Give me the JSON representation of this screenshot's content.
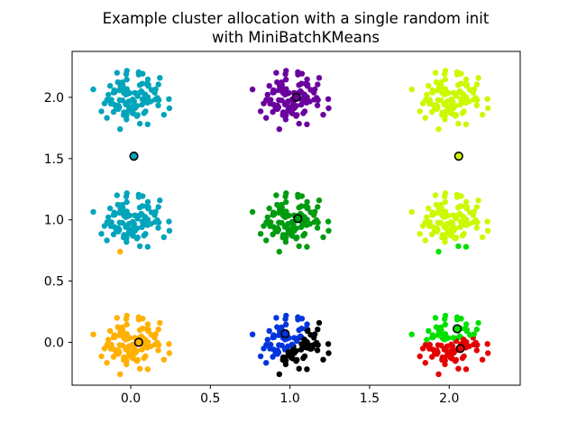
{
  "title": {
    "line1": "Example cluster allocation with a single random init",
    "line2": "with MiniBatchKMeans"
  },
  "chart_data": {
    "type": "scatter",
    "title": "Example cluster allocation with a single random init\nwith MiniBatchKMeans",
    "xlabel": "",
    "ylabel": "",
    "xlim": [
      -0.368,
      2.446
    ],
    "ylim": [
      -0.35,
      2.375
    ],
    "x_ticks": {
      "values": [
        0.0,
        0.5,
        1.0,
        1.5,
        2.0
      ],
      "labels": [
        "0.0",
        "0.5",
        "1.0",
        "1.5",
        "2.0"
      ]
    },
    "y_ticks": {
      "values": [
        0.0,
        0.5,
        1.0,
        1.5,
        2.0
      ],
      "labels": [
        "0.0",
        "0.5",
        "1.0",
        "1.5",
        "2.0"
      ]
    },
    "grid": false,
    "legend": null,
    "blob_centers": [
      [
        0,
        2
      ],
      [
        1,
        2
      ],
      [
        2,
        2
      ],
      [
        0,
        1
      ],
      [
        1,
        1
      ],
      [
        2,
        1
      ],
      [
        0,
        0
      ],
      [
        1,
        0
      ],
      [
        2,
        0
      ]
    ],
    "n_samples_per_center": 100,
    "noise_scale": 0.1,
    "noise_clamp": 0.26,
    "seed": 42,
    "fixed_outlier_offset": [
      -0.235,
      0.065
    ],
    "point_color_rule": "each point colored by nearest centroid (nipy_spectral palette, 9 clusters)",
    "clusters": [
      {
        "name": "cluster-black",
        "color": "#000000",
        "centroid": [
          1.13,
          -0.04
        ]
      },
      {
        "name": "cluster-purple",
        "color": "#6A009D",
        "centroid": [
          1.04,
          2.0
        ]
      },
      {
        "name": "cluster-blue",
        "color": "#0035DD",
        "centroid": [
          0.97,
          0.07
        ]
      },
      {
        "name": "cluster-cyan",
        "color": "#00A4BB",
        "centroid": [
          0.02,
          1.52
        ]
      },
      {
        "name": "cluster-green-dark",
        "color": "#009B0F",
        "centroid": [
          1.05,
          1.01
        ]
      },
      {
        "name": "cluster-green-bright",
        "color": "#00E100",
        "centroid": [
          2.05,
          0.11
        ]
      },
      {
        "name": "cluster-chartreuse",
        "color": "#CCF900",
        "centroid": [
          2.06,
          1.52
        ]
      },
      {
        "name": "cluster-orange",
        "color": "#FFB000",
        "centroid": [
          0.05,
          0.0
        ]
      },
      {
        "name": "cluster-red",
        "color": "#E50000",
        "centroid": [
          2.07,
          -0.05
        ]
      }
    ],
    "marker": {
      "point_radius": 3.2,
      "centroid_radius": 4.3,
      "centroid_edge_color": "#000000",
      "centroid_edge_width": 1.6
    },
    "spine_color": "#000000",
    "background_color": "#ffffff"
  }
}
